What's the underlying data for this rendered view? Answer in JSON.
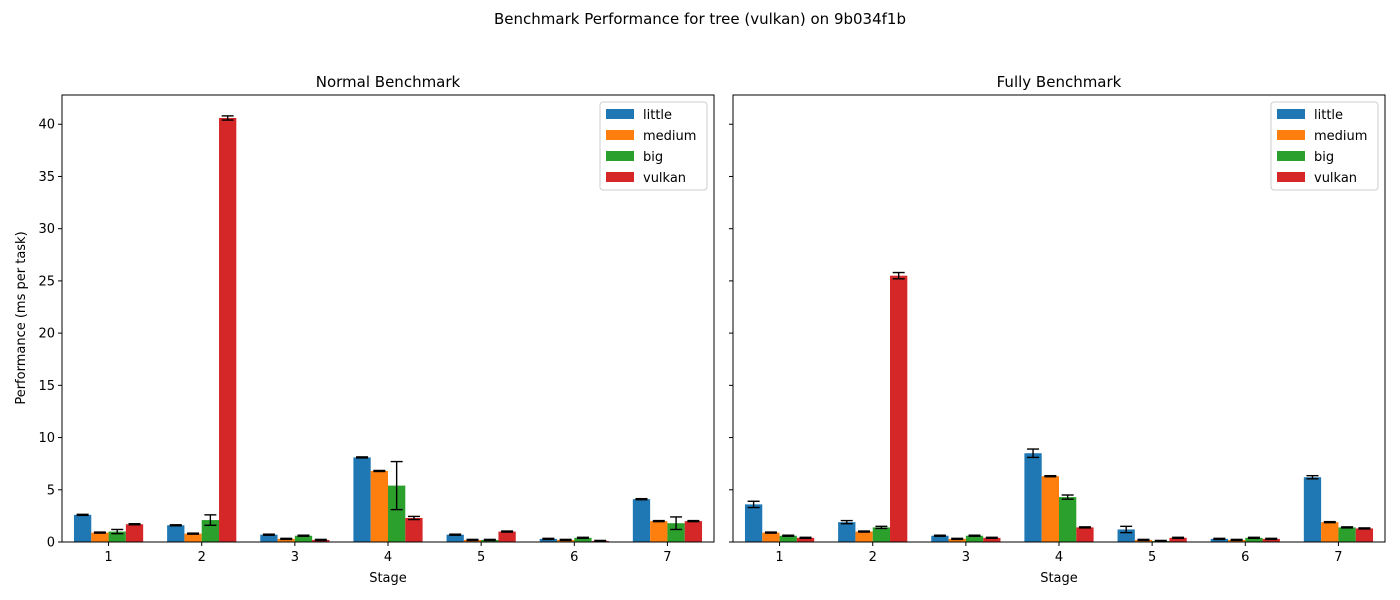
{
  "suptitle": "Benchmark Performance for tree (vulkan) on 9b034f1b",
  "colors": {
    "little": "#1f77b4",
    "medium": "#ff7f0e",
    "big": "#2ca02c",
    "vulkan": "#d62728"
  },
  "chart_data": [
    {
      "type": "bar",
      "title": "Normal Benchmark",
      "xlabel": "Stage",
      "ylabel": "Performance (ms per task)",
      "ylim": [
        0,
        42.8
      ],
      "yticks": [
        0,
        5,
        10,
        15,
        20,
        25,
        30,
        35,
        40
      ],
      "show_ytick_labels": true,
      "categories": [
        "1",
        "2",
        "3",
        "4",
        "5",
        "6",
        "7"
      ],
      "legend_position": "top-right",
      "grid": false,
      "series": [
        {
          "name": "little",
          "values": [
            2.6,
            1.6,
            0.7,
            8.1,
            0.7,
            0.3,
            4.1
          ],
          "errors": [
            0.05,
            0.05,
            0.05,
            0.05,
            0.05,
            0.05,
            0.05
          ]
        },
        {
          "name": "medium",
          "values": [
            0.9,
            0.8,
            0.3,
            6.8,
            0.2,
            0.2,
            2.0
          ],
          "errors": [
            0.05,
            0.05,
            0.05,
            0.05,
            0.05,
            0.05,
            0.05
          ]
        },
        {
          "name": "big",
          "values": [
            1.0,
            2.1,
            0.6,
            5.4,
            0.2,
            0.4,
            1.8
          ],
          "errors": [
            0.2,
            0.5,
            0.05,
            2.3,
            0.05,
            0.05,
            0.6
          ]
        },
        {
          "name": "vulkan",
          "values": [
            1.7,
            40.6,
            0.2,
            2.3,
            1.0,
            0.1,
            2.0
          ],
          "errors": [
            0.05,
            0.2,
            0.05,
            0.15,
            0.05,
            0.05,
            0.05
          ]
        }
      ]
    },
    {
      "type": "bar",
      "title": "Fully Benchmark",
      "xlabel": "Stage",
      "ylabel": "",
      "ylim": [
        0,
        42.8
      ],
      "yticks": [
        0,
        5,
        10,
        15,
        20,
        25,
        30,
        35,
        40
      ],
      "show_ytick_labels": false,
      "categories": [
        "1",
        "2",
        "3",
        "4",
        "5",
        "6",
        "7"
      ],
      "legend_position": "top-right",
      "grid": false,
      "series": [
        {
          "name": "little",
          "values": [
            3.6,
            1.9,
            0.6,
            8.5,
            1.2,
            0.3,
            6.2
          ],
          "errors": [
            0.3,
            0.15,
            0.05,
            0.4,
            0.3,
            0.05,
            0.15
          ]
        },
        {
          "name": "medium",
          "values": [
            0.9,
            1.0,
            0.3,
            6.3,
            0.2,
            0.2,
            1.9
          ],
          "errors": [
            0.05,
            0.05,
            0.05,
            0.05,
            0.05,
            0.05,
            0.05
          ]
        },
        {
          "name": "big",
          "values": [
            0.6,
            1.4,
            0.6,
            4.3,
            0.1,
            0.4,
            1.4
          ],
          "errors": [
            0.05,
            0.1,
            0.05,
            0.2,
            0.05,
            0.05,
            0.05
          ]
        },
        {
          "name": "vulkan",
          "values": [
            0.4,
            25.5,
            0.4,
            1.4,
            0.4,
            0.3,
            1.3
          ],
          "errors": [
            0.05,
            0.3,
            0.05,
            0.05,
            0.05,
            0.05,
            0.05
          ]
        }
      ]
    }
  ]
}
